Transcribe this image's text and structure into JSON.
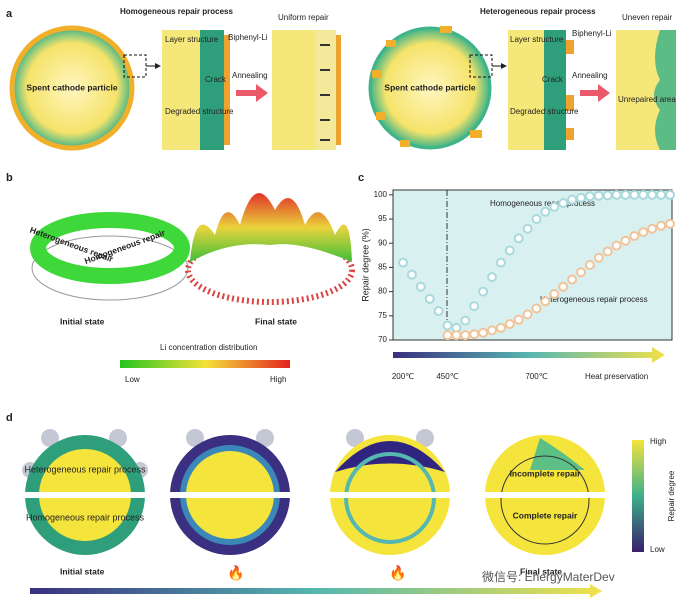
{
  "panel_a": {
    "label": "a",
    "left": {
      "title": "Homogeneous repair process",
      "particle": "Spent cathode particle",
      "layer": "Layer structure",
      "biphenyl": "Biphenyl-Li",
      "crack": "Crack",
      "annealing": "Annealing",
      "degraded": "Degraded structure",
      "result": "Uniform repair"
    },
    "right": {
      "title": "Heterogeneous repair process",
      "particle": "Spent cathode particle",
      "layer": "Layer structure",
      "biphenyl": "Biphenyl-Li",
      "crack": "Crack",
      "annealing": "Annealing",
      "degraded": "Degraded structure",
      "result": "Uneven repair",
      "unrepaired": "Unrepaired area"
    }
  },
  "panel_b": {
    "label": "b",
    "ring_top": "Heterogeneous repair",
    "ring_bottom": "Homogeneous repair",
    "initial": "Initial state",
    "final": "Final state",
    "colorbar_title": "Li concentration distribution",
    "low": "Low",
    "high": "High"
  },
  "chart_data": {
    "type": "scatter",
    "label": "c",
    "y_label": "Repair degree (%)",
    "categories": [
      "200℃",
      null,
      null,
      null,
      null,
      "450℃",
      null,
      null,
      null,
      null,
      null,
      null,
      null,
      null,
      null,
      "700℃",
      null,
      null,
      null,
      null,
      null,
      null,
      null,
      null,
      "Heat preservation",
      null,
      null,
      null,
      null,
      null,
      null
    ],
    "series": [
      {
        "name": "Homogeneous repair process",
        "color": "#a9d9dc",
        "values": [
          86,
          83.5,
          81,
          78.5,
          76,
          73,
          72.5,
          74,
          77,
          80,
          83,
          86,
          88.5,
          91,
          93,
          95,
          96.5,
          97.5,
          98.3,
          99,
          99.4,
          99.7,
          99.8,
          99.9,
          100,
          100,
          100,
          100,
          100,
          100,
          100
        ]
      },
      {
        "name": "Heterogeneous repair process",
        "color": "#f0c49a",
        "values": [
          null,
          null,
          null,
          null,
          null,
          71,
          71,
          71,
          71.2,
          71.5,
          72,
          72.5,
          73.3,
          74.2,
          75.3,
          76.5,
          78,
          79.5,
          81,
          82.5,
          84,
          85.5,
          87,
          88.3,
          89.5,
          90.5,
          91.5,
          92.3,
          93,
          93.6,
          94
        ]
      }
    ],
    "ylim": [
      70,
      101
    ],
    "yticks": [
      70,
      75,
      80,
      85,
      90,
      95,
      100
    ]
  },
  "panel_d": {
    "label": "d",
    "top_half": "Heterogeneous repair process",
    "bottom_half": "Homogeneous repair process",
    "incomplete": "Incomplete repair",
    "complete": "Complete repair",
    "initial": "Initial state",
    "final": "Final state",
    "colorbar_high": "High",
    "colorbar_low": "Low",
    "colorbar_title": "Repair degree",
    "watermark": "微信号: EnergyMaterDev"
  }
}
